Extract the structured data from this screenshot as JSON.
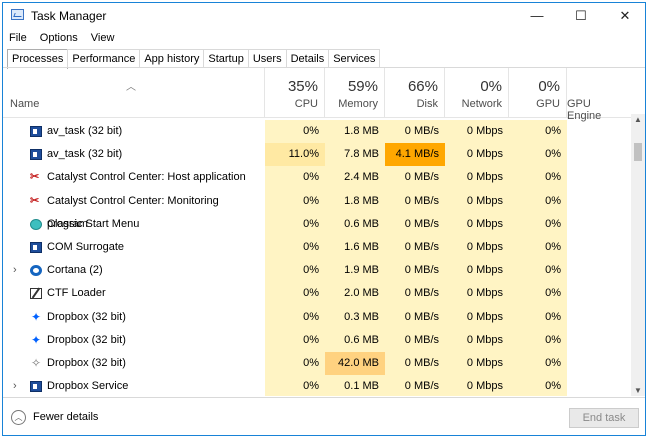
{
  "window": {
    "title": "Task Manager",
    "minimize": "—",
    "maximize": "☐",
    "close": "✕"
  },
  "menu": [
    "File",
    "Options",
    "View"
  ],
  "tabs": [
    "Processes",
    "Performance",
    "App history",
    "Startup",
    "Users",
    "Details",
    "Services"
  ],
  "columns": {
    "name": {
      "label": "Name"
    },
    "cpu": {
      "pct": "35%",
      "label": "CPU"
    },
    "memory": {
      "pct": "59%",
      "label": "Memory"
    },
    "disk": {
      "pct": "66%",
      "label": "Disk"
    },
    "network": {
      "pct": "0%",
      "label": "Network"
    },
    "gpu": {
      "pct": "0%",
      "label": "GPU"
    },
    "gpu_engine": {
      "label": "GPU Engine"
    }
  },
  "processes": [
    {
      "name": "av_task (32 bit)",
      "icon": "app-window-icon",
      "expandable": false,
      "cpu": "0%",
      "memory": "1.8 MB",
      "disk": "0 MB/s",
      "network": "0 Mbps",
      "gpu": "0%",
      "gpu_engine": ""
    },
    {
      "name": "av_task (32 bit)",
      "icon": "app-window-icon",
      "expandable": false,
      "cpu": "11.0%",
      "memory": "7.8 MB",
      "disk": "4.1 MB/s",
      "network": "0 Mbps",
      "gpu": "0%",
      "gpu_engine": ""
    },
    {
      "name": "Catalyst Control Center: Host application",
      "icon": "catalyst-icon",
      "expandable": false,
      "cpu": "0%",
      "memory": "2.4 MB",
      "disk": "0 MB/s",
      "network": "0 Mbps",
      "gpu": "0%",
      "gpu_engine": ""
    },
    {
      "name": "Catalyst Control Center: Monitoring program",
      "icon": "catalyst-icon",
      "expandable": false,
      "cpu": "0%",
      "memory": "1.8 MB",
      "disk": "0 MB/s",
      "network": "0 Mbps",
      "gpu": "0%",
      "gpu_engine": ""
    },
    {
      "name": "Classic Start Menu",
      "icon": "classic-start-icon",
      "expandable": false,
      "cpu": "0%",
      "memory": "0.6 MB",
      "disk": "0 MB/s",
      "network": "0 Mbps",
      "gpu": "0%",
      "gpu_engine": ""
    },
    {
      "name": "COM Surrogate",
      "icon": "app-window-icon",
      "expandable": false,
      "cpu": "0%",
      "memory": "1.6 MB",
      "disk": "0 MB/s",
      "network": "0 Mbps",
      "gpu": "0%",
      "gpu_engine": ""
    },
    {
      "name": "Cortana (2)",
      "icon": "cortana-icon",
      "expandable": true,
      "cpu": "0%",
      "memory": "1.9 MB",
      "disk": "0 MB/s",
      "network": "0 Mbps",
      "gpu": "0%",
      "gpu_engine": ""
    },
    {
      "name": "CTF Loader",
      "icon": "ctf-loader-icon",
      "expandable": false,
      "cpu": "0%",
      "memory": "2.0 MB",
      "disk": "0 MB/s",
      "network": "0 Mbps",
      "gpu": "0%",
      "gpu_engine": ""
    },
    {
      "name": "Dropbox (32 bit)",
      "icon": "dropbox-icon",
      "expandable": false,
      "cpu": "0%",
      "memory": "0.3 MB",
      "disk": "0 MB/s",
      "network": "0 Mbps",
      "gpu": "0%",
      "gpu_engine": ""
    },
    {
      "name": "Dropbox (32 bit)",
      "icon": "dropbox-icon",
      "expandable": false,
      "cpu": "0%",
      "memory": "0.6 MB",
      "disk": "0 MB/s",
      "network": "0 Mbps",
      "gpu": "0%",
      "gpu_engine": ""
    },
    {
      "name": "Dropbox (32 bit)",
      "icon": "dropbox-gray-icon",
      "expandable": false,
      "cpu": "0%",
      "memory": "42.0 MB",
      "disk": "0 MB/s",
      "network": "0 Mbps",
      "gpu": "0%",
      "gpu_engine": ""
    },
    {
      "name": "Dropbox Service",
      "icon": "app-window-icon",
      "expandable": true,
      "cpu": "0%",
      "memory": "0.1 MB",
      "disk": "0 MB/s",
      "network": "0 Mbps",
      "gpu": "0%",
      "gpu_engine": ""
    }
  ],
  "footer": {
    "fewer_details": "Fewer details",
    "end_task": "End task"
  },
  "colors": {
    "heat_low": "#fff4c4",
    "heat_mid": "#ffe9a3",
    "heat_high": "#ffd280",
    "heat_hot": "#ffa700",
    "accent": "#1883d7"
  }
}
